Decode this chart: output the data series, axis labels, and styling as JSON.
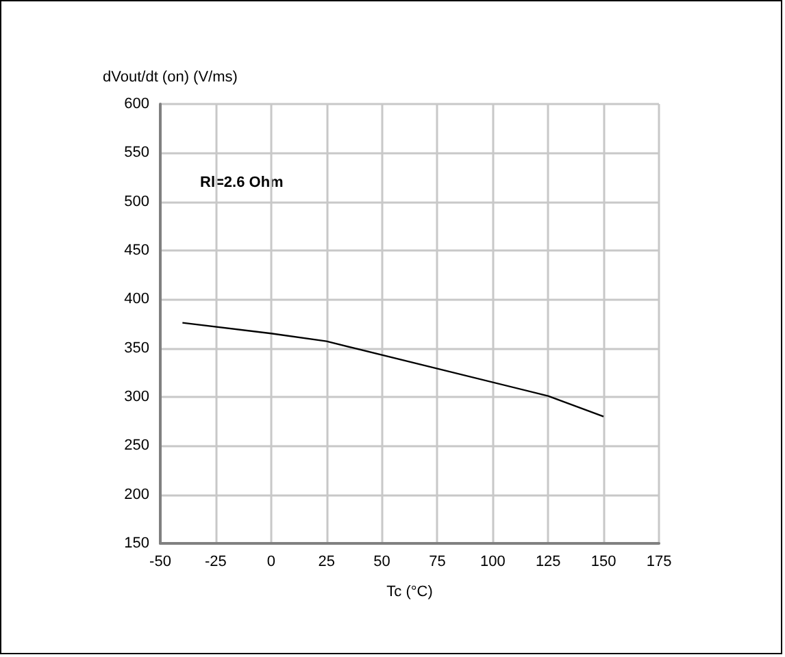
{
  "chart_data": {
    "type": "line",
    "ylabel": "dVout/dt (on) (V/ms)",
    "xlabel": "Tc (°C)",
    "annotations": [
      "Rl=2.6 Ohm"
    ],
    "x": [
      -40,
      0,
      25,
      125,
      150
    ],
    "series": [
      {
        "color": "#000000",
        "values": [
          376,
          365,
          357,
          301,
          280
        ]
      }
    ],
    "xlim": [
      -50,
      175
    ],
    "xticks": [
      -50,
      -25,
      0,
      25,
      50,
      75,
      100,
      125,
      150,
      175
    ],
    "ylim": [
      150,
      600
    ],
    "yticks": [
      150,
      200,
      250,
      300,
      350,
      400,
      450,
      500,
      550,
      600
    ],
    "grid": true
  }
}
